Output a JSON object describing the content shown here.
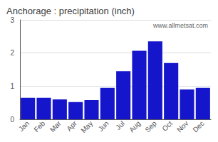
{
  "chart_data": {
    "type": "bar",
    "title": "Anchorage : precipitation (inch)",
    "categories": [
      "Jan",
      "Feb",
      "Mar",
      "Apr",
      "May",
      "Jun",
      "Jul",
      "Aug",
      "Sep",
      "Oct",
      "Nov",
      "Dec"
    ],
    "values": [
      0.65,
      0.65,
      0.6,
      0.52,
      0.58,
      0.95,
      1.45,
      2.07,
      2.35,
      1.7,
      0.9,
      0.95
    ],
    "color": "#1515cc",
    "ylim": [
      0,
      3
    ],
    "yticks": [
      0,
      1,
      2,
      3
    ],
    "grid": true,
    "annotations": [
      "www.allmetsat.com"
    ]
  }
}
